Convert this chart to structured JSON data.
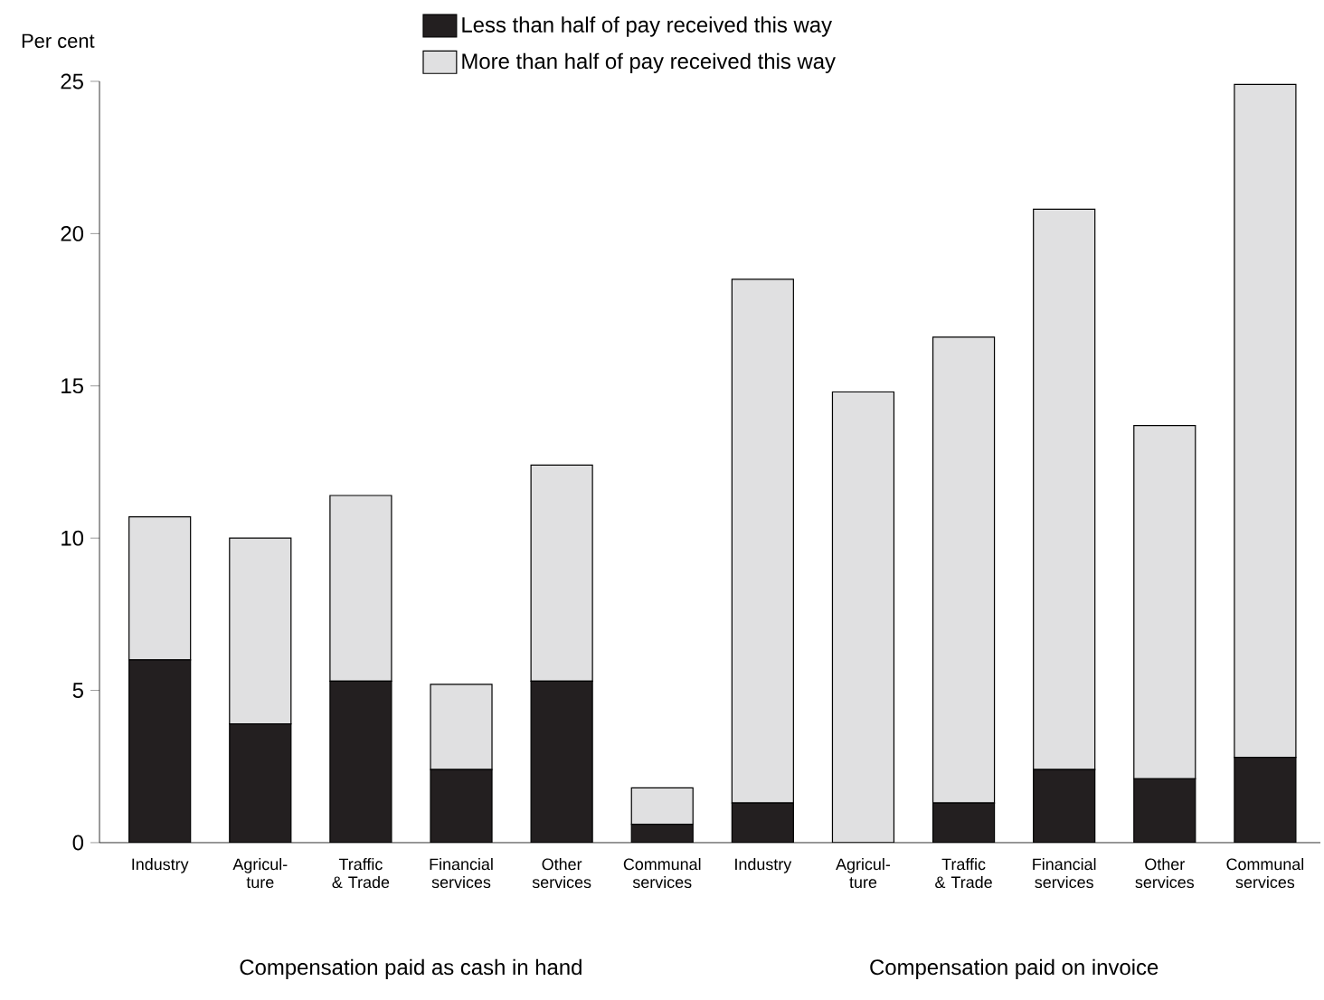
{
  "chart_data": {
    "type": "bar",
    "stacked": true,
    "ylabel": "Per cent",
    "categories": [
      "Industry",
      "Agricul- ture",
      "Traffic & Trade",
      "Financial services",
      "Other services",
      "Communal services",
      "Industry",
      "Agricul- ture",
      "Traffic & Trade",
      "Financial services",
      "Other services",
      "Communal services"
    ],
    "series": [
      {
        "name": "Less than half of pay received this way",
        "color": "#231f20",
        "values": [
          6.0,
          3.9,
          5.3,
          2.4,
          5.3,
          0.6,
          1.3,
          0,
          1.3,
          2.4,
          2.1,
          2.8
        ]
      },
      {
        "name": "More than half of pay received this way",
        "color": "#e0e0e1",
        "values": [
          4.7,
          6.1,
          6.1,
          2.8,
          7.1,
          1.2,
          17.2,
          14.8,
          15.3,
          18.4,
          11.6,
          22.1
        ]
      }
    ],
    "ylim": [
      0,
      25
    ],
    "yticks": [
      0,
      5,
      10,
      15,
      20,
      25
    ],
    "grid": false,
    "legend": "top",
    "annotations": [
      "Compensation paid as cash in hand",
      "Compensation paid on invoice"
    ]
  }
}
